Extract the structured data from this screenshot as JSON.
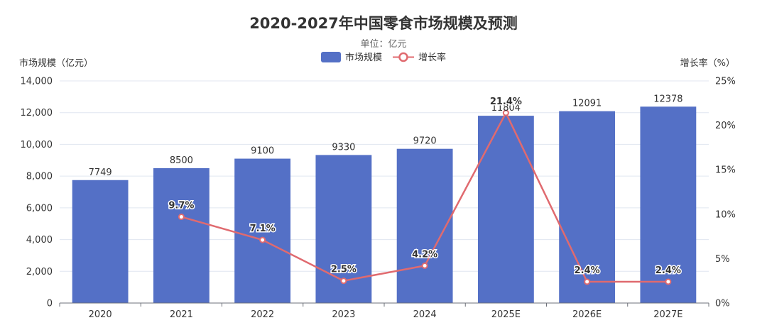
{
  "chart_data": {
    "type": "bar",
    "title": "2020-2027年中国零食市场规模及预测",
    "subtitle": "单位：亿元",
    "categories": [
      "2020",
      "2021",
      "2022",
      "2023",
      "2024",
      "2025E",
      "2026E",
      "2027E"
    ],
    "series": [
      {
        "name": "市场规模",
        "type": "bar",
        "axis": "left",
        "color": "#5470c6",
        "values": [
          7749,
          8500,
          9100,
          9330,
          9720,
          11804,
          12091,
          12378
        ],
        "labels": [
          "7749",
          "8500",
          "9100",
          "9330",
          "9720",
          "11804",
          "12091",
          "12378"
        ]
      },
      {
        "name": "增长率",
        "type": "line",
        "axis": "right",
        "color": "#e06a6f",
        "values": [
          null,
          9.7,
          7.1,
          2.5,
          4.2,
          21.4,
          2.4,
          2.4
        ],
        "labels": [
          "",
          "9.7%",
          "7.1%",
          "2.5%",
          "4.2%",
          "21.4%",
          "2.4%",
          "2.4%"
        ]
      }
    ],
    "ylabel_left": "市场规模（亿元）",
    "ylabel_right": "增长率（%）",
    "ylim_left": [
      0,
      14000
    ],
    "ylim_right": [
      0,
      25
    ],
    "yticks_left": [
      "0",
      "2,000",
      "4,000",
      "6,000",
      "8,000",
      "10,000",
      "12,000",
      "14,000"
    ],
    "yticks_right": [
      "0%",
      "5%",
      "10%",
      "15%",
      "20%",
      "25%"
    ],
    "grid": true,
    "legend_position": "top-center"
  }
}
